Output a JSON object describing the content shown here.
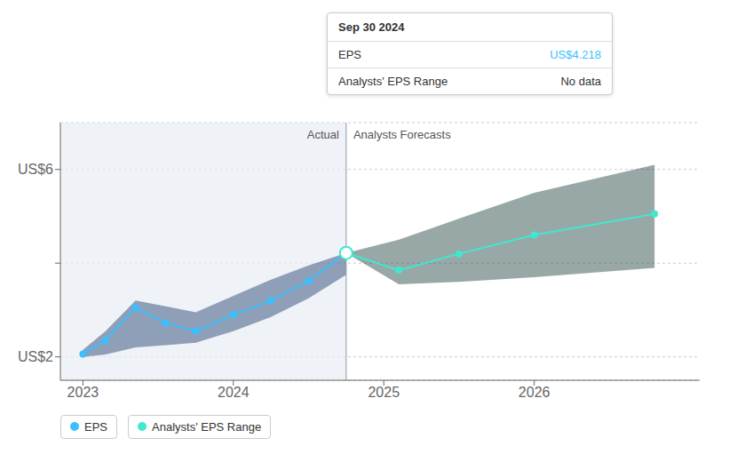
{
  "chart_data": {
    "type": "line",
    "xlim": [
      2022.85,
      2027.1
    ],
    "xticks": [
      2023,
      2024,
      2025,
      2026
    ],
    "ylim": [
      1.5,
      7.0
    ],
    "yticks": [
      {
        "value": 2.0,
        "label": "US$2"
      },
      {
        "value": 4.0,
        "label": null
      },
      {
        "value": 6.0,
        "label": "US$6"
      }
    ],
    "grid": "y",
    "legend": "lower left",
    "divider_x": 2024.75,
    "region_labels": [
      "Actual",
      "Analysts Forecasts"
    ],
    "highlight": {
      "x": 2024.75,
      "y": 4.218
    },
    "series": [
      {
        "type": "area",
        "color": "#1a3a6a",
        "x": [
          2023.0,
          2023.15,
          2023.35,
          2023.55,
          2023.75,
          2024.0,
          2024.25,
          2024.5,
          2024.75
        ],
        "lower": [
          2.0,
          2.05,
          2.2,
          2.25,
          2.3,
          2.55,
          2.85,
          3.25,
          3.75
        ],
        "upper": [
          2.15,
          2.55,
          3.2,
          3.08,
          2.95,
          3.3,
          3.65,
          3.95,
          4.218
        ]
      },
      {
        "name": "EPS",
        "type": "line",
        "marker": "circle",
        "color": "#3bbfff",
        "x": [
          2023.0,
          2023.15,
          2023.35,
          2023.55,
          2023.75,
          2024.0,
          2024.25,
          2024.5,
          2024.75
        ],
        "values": [
          2.06,
          2.35,
          3.05,
          2.72,
          2.55,
          2.9,
          3.2,
          3.62,
          4.218
        ]
      },
      {
        "type": "area",
        "color": "#1a3d3a",
        "x": [
          2024.75,
          2025.1,
          2025.5,
          2026.0,
          2026.8
        ],
        "lower": [
          4.218,
          3.55,
          3.6,
          3.7,
          3.9
        ],
        "upper": [
          4.218,
          4.5,
          4.95,
          5.5,
          6.1
        ]
      },
      {
        "name": "Analysts' EPS Range",
        "type": "line",
        "marker": "circle",
        "color": "#40e8d0",
        "x": [
          2024.75,
          2025.1,
          2025.5,
          2026.0,
          2026.8
        ],
        "values": [
          4.218,
          3.85,
          4.2,
          4.6,
          5.05
        ]
      }
    ],
    "tooltip": {
      "title": "Sep 30 2024",
      "rows": [
        {
          "label": "EPS",
          "value": "US$4.218",
          "color": "#3bbfff"
        },
        {
          "label": "Analysts' EPS Range",
          "value": "No data"
        }
      ]
    }
  }
}
